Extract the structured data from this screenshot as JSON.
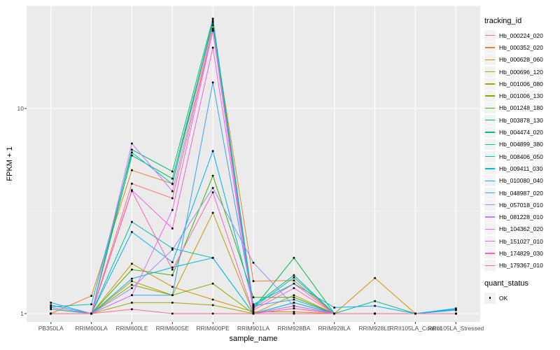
{
  "figure": {
    "panel_bg": "#EBEBEB",
    "grid_color": "#FFFFFF",
    "axis_text_color": "#4D4D4D",
    "tick_color": "#333333",
    "point_color": "#000000"
  },
  "legend": {
    "tracking_title": "tracking_id",
    "quant_title": "quant_status",
    "quant_items": [
      {
        "label": "OK"
      }
    ]
  },
  "chart_data": {
    "type": "line",
    "title": "",
    "xlabel": "sample_name",
    "ylabel": "FPKM + 1",
    "y_scale": "log10",
    "y_ticks": [
      1,
      10
    ],
    "y_minor_ticks": [
      3.162,
      31.62
    ],
    "ylim": [
      0.91,
      31.7
    ],
    "grid": true,
    "legend_position": "right",
    "point_marker": "square",
    "categories": [
      "PB350LA",
      "RRIM600LA",
      "RRIM600LE",
      "RRIM600SE",
      "RRIM600PE",
      "RRIM901LA",
      "RRIM928BA",
      "RRIM928LA",
      "RRIM928LE",
      "RRII105LA_Control",
      "RRII105LA_Stressed"
    ],
    "series": [
      {
        "name": "Hb_000224_020",
        "color": "#F8766D",
        "values": [
          1.0,
          1.0,
          4.3,
          3.65,
          24.0,
          1.06,
          1.4,
          1.0,
          1.0,
          1.0,
          1.0
        ]
      },
      {
        "name": "Hb_000352_020",
        "color": "#EA8331",
        "values": [
          1.0,
          1.22,
          5.0,
          4.3,
          25.5,
          1.44,
          1.45,
          1.0,
          1.0,
          1.0,
          1.0
        ]
      },
      {
        "name": "Hb_000628_060",
        "color": "#D89000",
        "values": [
          1.0,
          1.0,
          1.75,
          1.35,
          1.17,
          1.02,
          1.02,
          1.0,
          1.49,
          1.0,
          1.0
        ]
      },
      {
        "name": "Hb_000696_120",
        "color": "#C09B00",
        "values": [
          1.0,
          1.0,
          1.44,
          1.23,
          3.1,
          1.0,
          1.23,
          1.0,
          1.0,
          1.0,
          1.0
        ]
      },
      {
        "name": "Hb_001006_080",
        "color": "#A3A500",
        "values": [
          1.0,
          1.0,
          1.13,
          1.13,
          1.1,
          1.0,
          1.0,
          1.0,
          1.0,
          1.0,
          1.0
        ]
      },
      {
        "name": "Hb_001006_130",
        "color": "#7CAE00",
        "values": [
          1.0,
          1.0,
          1.38,
          1.23,
          1.4,
          1.0,
          1.13,
          1.0,
          1.0,
          1.0,
          1.0
        ]
      },
      {
        "name": "Hb_001248_180",
        "color": "#39B600",
        "values": [
          1.0,
          1.0,
          1.64,
          1.54,
          4.7,
          1.2,
          1.2,
          1.0,
          1.0,
          1.0,
          1.0
        ]
      },
      {
        "name": "Hb_003878_130",
        "color": "#00BB4E",
        "values": [
          1.0,
          1.0,
          5.9,
          4.55,
          26.2,
          1.06,
          1.87,
          1.0,
          1.0,
          1.0,
          1.0
        ]
      },
      {
        "name": "Hb_004474_020",
        "color": "#00BF7D",
        "values": [
          1.0,
          1.0,
          6.3,
          4.93,
          27.4,
          1.09,
          1.54,
          1.0,
          1.15,
          1.0,
          1.0
        ]
      },
      {
        "name": "Hb_004899_380",
        "color": "#00C1A3",
        "values": [
          1.05,
          1.0,
          2.8,
          2.08,
          1.87,
          1.0,
          1.09,
          1.0,
          1.0,
          1.0,
          1.0
        ]
      },
      {
        "name": "Hb_008406_050",
        "color": "#00BFC4",
        "values": [
          1.08,
          1.11,
          6.1,
          4.28,
          26.8,
          1.07,
          1.5,
          1.0,
          1.0,
          1.0,
          1.04
        ]
      },
      {
        "name": "Hb_009411_030",
        "color": "#00BAE0",
        "values": [
          1.1,
          1.0,
          1.48,
          1.68,
          1.87,
          1.0,
          1.13,
          1.0,
          1.0,
          1.0,
          1.05
        ]
      },
      {
        "name": "Hb_010080_040",
        "color": "#00B0F6",
        "values": [
          1.0,
          1.0,
          2.5,
          1.78,
          6.2,
          1.11,
          1.4,
          1.07,
          1.09,
          1.0,
          1.06
        ]
      },
      {
        "name": "Hb_048987_020",
        "color": "#35A2FF",
        "values": [
          1.13,
          1.0,
          1.23,
          1.23,
          13.4,
          1.09,
          1.17,
          1.0,
          1.0,
          1.0,
          1.04
        ]
      },
      {
        "name": "Hb_057018_010",
        "color": "#9590FF",
        "values": [
          1.0,
          1.0,
          1.33,
          2.05,
          4.1,
          1.77,
          1.09,
          1.0,
          1.0,
          1.0,
          1.0
        ]
      },
      {
        "name": "Hb_081228_010",
        "color": "#C77CFF",
        "values": [
          1.0,
          1.0,
          6.75,
          3.95,
          24.5,
          1.0,
          1.06,
          1.0,
          1.0,
          1.0,
          1.0
        ]
      },
      {
        "name": "Hb_104362_020",
        "color": "#E76BF3",
        "values": [
          1.0,
          1.0,
          1.23,
          3.2,
          23.9,
          1.0,
          1.09,
          1.0,
          1.0,
          1.0,
          1.0
        ]
      },
      {
        "name": "Hb_151027_010",
        "color": "#FA62DB",
        "values": [
          1.0,
          1.0,
          4.0,
          2.6,
          19.8,
          1.04,
          1.33,
          1.0,
          1.0,
          1.0,
          1.0
        ]
      },
      {
        "name": "Hb_174829_030",
        "color": "#FF62BC",
        "values": [
          1.07,
          1.0,
          3.96,
          1.64,
          3.9,
          1.0,
          1.06,
          1.0,
          1.0,
          1.0,
          1.0
        ]
      },
      {
        "name": "Hb_179367_010",
        "color": "#FF6A98",
        "values": [
          1.0,
          1.0,
          1.05,
          1.0,
          1.0,
          1.0,
          1.0,
          1.0,
          1.0,
          1.0,
          1.0
        ]
      }
    ]
  }
}
